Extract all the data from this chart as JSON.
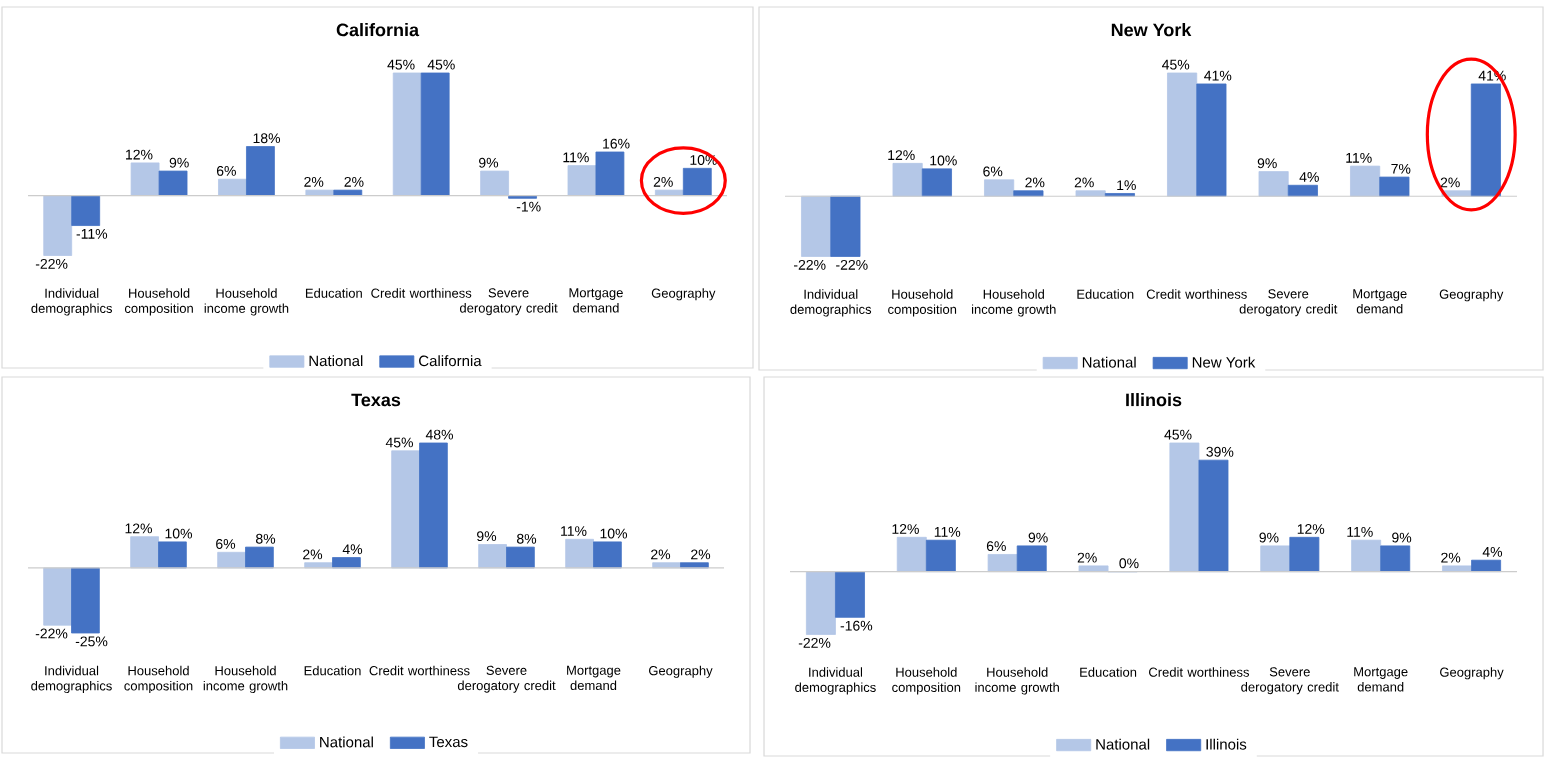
{
  "chart_data": [
    {
      "type": "bar",
      "title": "California",
      "categories": [
        "Individual demographics",
        "Household composition",
        "Household income growth",
        "Education",
        "Credit worthiness",
        "Severe derogatory credit",
        "Mortgage demand",
        "Geography"
      ],
      "legend": "bottom",
      "series": [
        {
          "name": "National",
          "color": "#b4c7e7",
          "values": [
            -22,
            12,
            6,
            2,
            45,
            9,
            11,
            2
          ],
          "value_labels": [
            "-22%",
            "12%",
            "6%",
            "2%",
            "45%",
            "9%",
            "11%",
            "2%"
          ]
        },
        {
          "name": "California",
          "color": "#4472c4",
          "values": [
            -11,
            9,
            18,
            2,
            45,
            -1,
            16,
            10
          ],
          "value_labels": [
            "-11%",
            "9%",
            "18%",
            "2%",
            "45%",
            "-1%",
            "16%",
            "10%"
          ]
        }
      ]
    },
    {
      "type": "bar",
      "title": "New York",
      "categories": [
        "Individual demographics",
        "Household composition",
        "Household income growth",
        "Education",
        "Credit worthiness",
        "Severe derogatory credit",
        "Mortgage demand",
        "Geography"
      ],
      "legend": "bottom",
      "series": [
        {
          "name": "National",
          "color": "#b4c7e7",
          "values": [
            -22,
            12,
            6,
            2,
            45,
            9,
            11,
            2
          ],
          "value_labels": [
            "-22%",
            "12%",
            "6%",
            "2%",
            "45%",
            "9%",
            "11%",
            "2%"
          ]
        },
        {
          "name": "New York",
          "color": "#4472c4",
          "values": [
            -22,
            10,
            2,
            1,
            41,
            4,
            7,
            41
          ],
          "value_labels": [
            "-22%",
            "10%",
            "2%",
            "1%",
            "41%",
            "4%",
            "7%",
            "41%"
          ]
        }
      ]
    },
    {
      "type": "bar",
      "title": "Texas",
      "categories": [
        "Individual demographics",
        "Household composition",
        "Household income growth",
        "Education",
        "Credit worthiness",
        "Severe derogatory credit",
        "Mortgage demand",
        "Geography"
      ],
      "legend": "bottom",
      "series": [
        {
          "name": "National",
          "color": "#b4c7e7",
          "values": [
            -22,
            12,
            6,
            2,
            45,
            9,
            11,
            2
          ],
          "value_labels": [
            "-22%",
            "12%",
            "6%",
            "2%",
            "45%",
            "9%",
            "11%",
            "2%"
          ]
        },
        {
          "name": "Texas",
          "color": "#4472c4",
          "values": [
            -25,
            10,
            8,
            4,
            48,
            8,
            10,
            2
          ],
          "value_labels": [
            "-25%",
            "10%",
            "8%",
            "4%",
            "48%",
            "8%",
            "10%",
            "2%"
          ]
        }
      ]
    },
    {
      "type": "bar",
      "title": "Illinois",
      "categories": [
        "Individual demographics",
        "Household composition",
        "Household income growth",
        "Education",
        "Credit worthiness",
        "Severe derogatory credit",
        "Mortgage demand",
        "Geography"
      ],
      "legend": "bottom",
      "series": [
        {
          "name": "National",
          "color": "#b4c7e7",
          "values": [
            -22,
            12,
            6,
            2,
            45,
            9,
            11,
            2
          ],
          "value_labels": [
            "-22%",
            "12%",
            "6%",
            "2%",
            "45%",
            "9%",
            "11%",
            "2%"
          ]
        },
        {
          "name": "Illinois",
          "color": "#4472c4",
          "values": [
            -16,
            11,
            9,
            0,
            39,
            12,
            9,
            4
          ],
          "value_labels": [
            "-16%",
            "11%",
            "9%",
            "0%",
            "39%",
            "12%",
            "9%",
            "4%"
          ]
        }
      ]
    }
  ]
}
